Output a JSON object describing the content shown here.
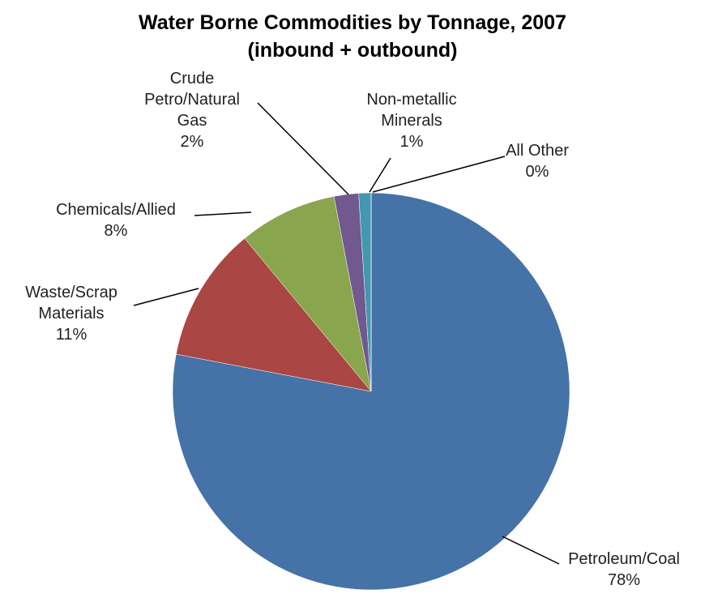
{
  "chart_data": {
    "type": "pie",
    "title": "Water Borne Commodities by Tonnage, 2007",
    "subtitle": "(inbound + outbound)",
    "categories": [
      "Petroleum/Coal",
      "Waste/Scrap Materials",
      "Chemicals/Allied",
      "Crude Petro/Natural Gas",
      "Non-metallic Minerals",
      "All Other"
    ],
    "values": [
      78,
      11,
      8,
      2,
      1,
      0
    ],
    "value_labels": [
      "78%",
      "11%",
      "8%",
      "2%",
      "1%",
      "0%"
    ],
    "colors": [
      "#4572a7",
      "#aa4643",
      "#89a54e",
      "#71588f",
      "#4198af",
      "#db843d"
    ]
  }
}
